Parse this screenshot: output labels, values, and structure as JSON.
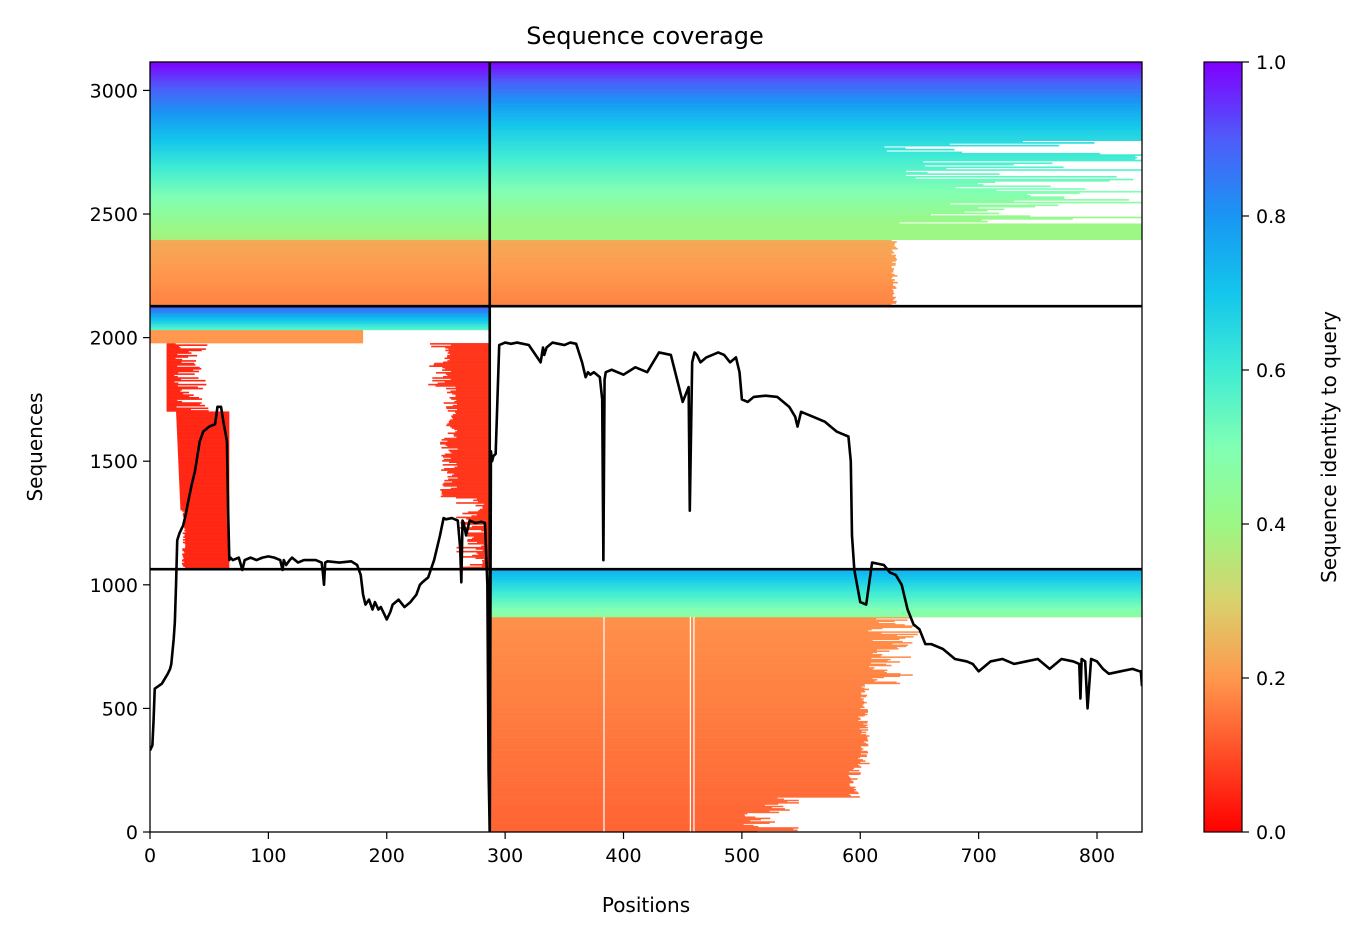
{
  "chart_data": {
    "type": "heatmap",
    "title": "Sequence coverage",
    "xlabel": "Positions",
    "ylabel": "Sequences",
    "xlim": [
      0,
      838
    ],
    "ylim": [
      0,
      3115
    ],
    "xticks": [
      0,
      100,
      200,
      300,
      400,
      500,
      600,
      700,
      800
    ],
    "yticks": [
      0,
      500,
      1000,
      1500,
      2000,
      2500,
      3000
    ],
    "grid": false,
    "colorbar": {
      "label": "Sequence identity to query",
      "colormap": "rainbow_r",
      "range": [
        0,
        1
      ],
      "ticks": [
        0.0,
        0.2,
        0.4,
        0.6,
        0.8,
        1.0
      ],
      "tick_labels": [
        "0.0",
        "0.2",
        "0.4",
        "0.6",
        "0.8",
        "1.0"
      ]
    },
    "separators": {
      "vertical_x": [
        287
      ],
      "horizontal_y": [
        2127,
        1063
      ]
    },
    "blocks": [
      {
        "x_range": [
          0,
          287
        ],
        "y_range": [
          2127,
          3115
        ],
        "identity_range": [
          0.17,
          1.0
        ]
      },
      {
        "x_range": [
          287,
          838
        ],
        "y_range": [
          2127,
          3115
        ],
        "identity_range": [
          0.17,
          1.0
        ]
      },
      {
        "x_range": [
          0,
          287
        ],
        "y_range": [
          1063,
          2127
        ],
        "identity_range": [
          0.05,
          0.9
        ]
      },
      {
        "x_range": [
          287,
          838
        ],
        "y_range": [
          0,
          1063
        ],
        "identity_range": [
          0.12,
          0.75
        ]
      }
    ],
    "series": [
      {
        "type": "line",
        "color": "#000000",
        "x": [
          0,
          2,
          3,
          4,
          10,
          15,
          17,
          18,
          20,
          21,
          22,
          23,
          25,
          28,
          30,
          32,
          35,
          38,
          40,
          42,
          45,
          50,
          55,
          57,
          60,
          62,
          65,
          66,
          67,
          68,
          70,
          75,
          78,
          80,
          85,
          90,
          95,
          100,
          105,
          110,
          112,
          113,
          115,
          118,
          120,
          125,
          130,
          140,
          145,
          146,
          147,
          148,
          150,
          160,
          170,
          175,
          178,
          180,
          182,
          185,
          188,
          190,
          193,
          195,
          198,
          200,
          203,
          205,
          210,
          215,
          220,
          225,
          228,
          230,
          235,
          240,
          245,
          248,
          250,
          255,
          260,
          262,
          263,
          264,
          265,
          267,
          270,
          275,
          280,
          283,
          285,
          286,
          287,
          288,
          289,
          290,
          292,
          295,
          300,
          305,
          310,
          320,
          330,
          332,
          333,
          335,
          340,
          345,
          350,
          355,
          360,
          365,
          368,
          370,
          372,
          375,
          380,
          382,
          383,
          384,
          385,
          390,
          400,
          410,
          420,
          430,
          440,
          450,
          455,
          456,
          457,
          458,
          459,
          460,
          462,
          465,
          470,
          480,
          485,
          490,
          495,
          498,
          500,
          505,
          510,
          520,
          530,
          540,
          545,
          547,
          550,
          560,
          570,
          575,
          580,
          585,
          590,
          592,
          593,
          595,
          600,
          605,
          610,
          620,
          625,
          630,
          635,
          640,
          645,
          650,
          655,
          660,
          670,
          680,
          690,
          695,
          700,
          710,
          720,
          730,
          740,
          750,
          760,
          770,
          780,
          785,
          786,
          787,
          790,
          792,
          795,
          800,
          805,
          810,
          820,
          830,
          836,
          837,
          838
        ],
        "y": [
          330,
          350,
          450,
          580,
          600,
          640,
          660,
          680,
          780,
          850,
          1000,
          1180,
          1210,
          1240,
          1280,
          1330,
          1400,
          1460,
          1520,
          1580,
          1620,
          1640,
          1650,
          1720,
          1720,
          1660,
          1580,
          1300,
          1100,
          1110,
          1100,
          1110,
          1060,
          1100,
          1110,
          1100,
          1110,
          1115,
          1110,
          1100,
          1060,
          1100,
          1080,
          1100,
          1110,
          1090,
          1100,
          1100,
          1090,
          1050,
          1000,
          1090,
          1095,
          1090,
          1095,
          1080,
          1040,
          960,
          920,
          940,
          900,
          930,
          900,
          910,
          880,
          860,
          890,
          920,
          940,
          910,
          930,
          960,
          1000,
          1010,
          1030,
          1100,
          1200,
          1270,
          1265,
          1270,
          1260,
          1150,
          1010,
          1260,
          1250,
          1200,
          1260,
          1250,
          1255,
          1250,
          1000,
          250,
          0,
          1540,
          1500,
          1520,
          1530,
          1970,
          1980,
          1975,
          1980,
          1970,
          1900,
          1960,
          1930,
          1960,
          1980,
          1975,
          1970,
          1980,
          1975,
          1900,
          1840,
          1860,
          1850,
          1860,
          1840,
          1750,
          1100,
          1830,
          1860,
          1870,
          1850,
          1880,
          1860,
          1940,
          1930,
          1740,
          1800,
          1300,
          1600,
          1900,
          1920,
          1940,
          1930,
          1900,
          1920,
          1940,
          1930,
          1900,
          1920,
          1860,
          1750,
          1740,
          1760,
          1765,
          1760,
          1720,
          1680,
          1640,
          1700,
          1680,
          1660,
          1640,
          1620,
          1610,
          1600,
          1500,
          1200,
          1060,
          930,
          920,
          1090,
          1080,
          1050,
          1040,
          1000,
          900,
          840,
          820,
          760,
          760,
          740,
          700,
          690,
          680,
          650,
          690,
          700,
          680,
          690,
          700,
          660,
          700,
          690,
          680,
          540,
          700,
          690,
          500,
          700,
          690,
          660,
          640,
          650,
          660,
          650,
          650,
          590
        ]
      }
    ]
  }
}
